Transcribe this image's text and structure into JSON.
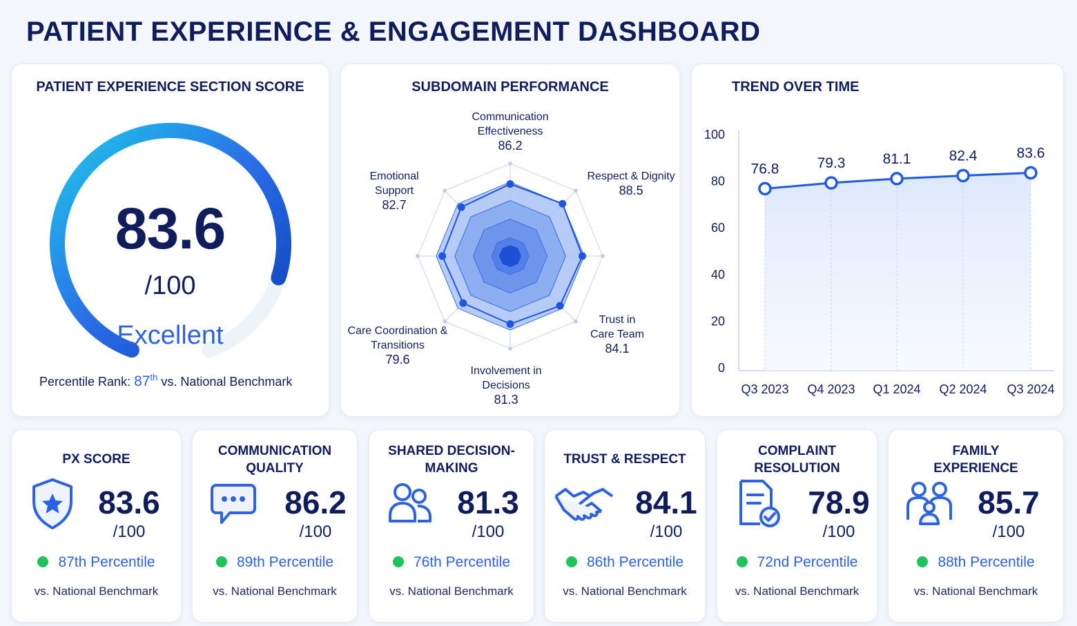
{
  "dashboard_title": "PATIENT EXPERIENCE & ENGAGEMENT DASHBOARD",
  "colors": {
    "navy": "#0f1d5c",
    "accent": "#2d63e0",
    "gauge_start": "#1ec8ea",
    "gauge_end": "#0a3fb8",
    "positive": "#1fc35a"
  },
  "score_card": {
    "title": "PATIENT EXPERIENCE SECTION SCORE",
    "score": "83.6",
    "denominator": "/100",
    "rating": "Excellent",
    "percentile_label": "Percentile Rank:",
    "percentile_value": "87",
    "percentile_suffix": "th",
    "benchmark_text": "vs. National Benchmark"
  },
  "radar_card": {
    "title": "SUBDOMAIN PERFORMANCE"
  },
  "trend_card": {
    "title": "TREND OVER TIME"
  },
  "chart_data": [
    {
      "type": "gauge",
      "value": 83.6,
      "max": 100,
      "title": "PATIENT EXPERIENCE SECTION SCORE"
    },
    {
      "type": "radar",
      "title": "SUBDOMAIN PERFORMANCE",
      "axes": [
        {
          "label": [
            "Communication",
            "Effectiveness"
          ],
          "value": 86.2,
          "display": "86.2"
        },
        {
          "label": [
            "Respect & Dignity"
          ],
          "value": 88.5,
          "display": "88.5"
        },
        {
          "label": [
            "Trust in",
            "Care Team"
          ],
          "value": 84.1,
          "display": "84.1"
        },
        {
          "label": [
            "Involvement in",
            "Decisions"
          ],
          "value": 81.3,
          "display": "81.3"
        },
        {
          "label": [
            "Care Coordination &",
            "Transitions"
          ],
          "value": 79.6,
          "display": "79.6"
        },
        {
          "label": [
            "Emotional",
            "Support"
          ],
          "value": 82.7,
          "display": "82.7"
        }
      ]
    },
    {
      "type": "line",
      "title": "TREND OVER TIME",
      "categories": [
        "Q3 2023",
        "Q4 2023",
        "Q1 2024",
        "Q2 2024",
        "Q3 2024"
      ],
      "values": [
        76.8,
        79.3,
        81.1,
        82.4,
        83.6
      ],
      "value_labels": [
        "76.8",
        "79.3",
        "81.1",
        "82.4",
        "83.6"
      ],
      "ylim": [
        0,
        100
      ],
      "yticks": [
        "0",
        "20",
        "40",
        "60",
        "80",
        "100"
      ],
      "xlabel": "",
      "ylabel": "",
      "grid": false
    }
  ],
  "kpis": [
    {
      "title": [
        "PX SCORE"
      ],
      "icon": "shield-star-icon",
      "value": "83.6",
      "denom": "/100",
      "percentile": "87th Percentile",
      "benchmark": "vs. National Benchmark"
    },
    {
      "title": [
        "COMMUNICATION",
        "QUALITY"
      ],
      "icon": "chat-bubble-icon",
      "value": "86.2",
      "denom": "/100",
      "percentile": "89th Percentile",
      "benchmark": "vs. National Benchmark"
    },
    {
      "title": [
        "SHARED DECISION-",
        "MAKING"
      ],
      "icon": "people-icon",
      "value": "81.3",
      "denom": "/100",
      "percentile": "76th Percentile",
      "benchmark": "vs. National Benchmark"
    },
    {
      "title": [
        "TRUST & RESPECT"
      ],
      "icon": "handshake-icon",
      "value": "84.1",
      "denom": "/100",
      "percentile": "86th Percentile",
      "benchmark": "vs. National Benchmark"
    },
    {
      "title": [
        "COMPLAINT",
        "RESOLUTION"
      ],
      "icon": "document-check-icon",
      "value": "78.9",
      "denom": "/100",
      "percentile": "72nd Percentile",
      "benchmark": "vs. National Benchmark"
    },
    {
      "title": [
        "FAMILY",
        "EXPERIENCE"
      ],
      "icon": "family-icon",
      "value": "85.7",
      "denom": "/100",
      "percentile": "88th Percentile",
      "benchmark": "vs. National Benchmark"
    }
  ]
}
